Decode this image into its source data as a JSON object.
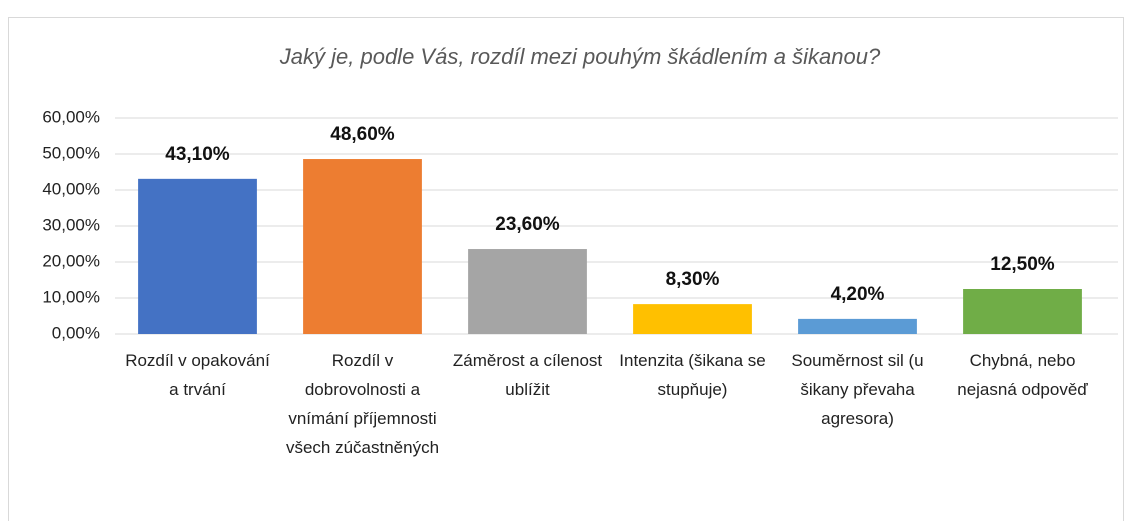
{
  "chart_data": {
    "type": "bar",
    "title": "Jaký je, podle Vás, rozdíl mezi pouhým škádlením a šikanou?",
    "categories": [
      "Rozdíl v opakování a trvání",
      "Rozdíl v dobrovolnosti a vnímání příjemnosti všech zúčastněných",
      "Záměrost a cílenost ublížit",
      "Intenzita (šikana se stupňuje)",
      "Souměrnost sil (u šikany převaha agresora)",
      "Chybná, nebo nejasná odpověď"
    ],
    "values": [
      43.1,
      48.6,
      23.6,
      8.3,
      4.2,
      12.5
    ],
    "value_labels": [
      "43,10%",
      "48,60%",
      "23,60%",
      "8,30%",
      "4,20%",
      "12,50%"
    ],
    "colors": [
      "#4472c4",
      "#ed7d31",
      "#a5a5a5",
      "#ffc000",
      "#5b9bd5",
      "#70ad47"
    ],
    "ylim": [
      0,
      60
    ],
    "yticks": [
      {
        "value": 0,
        "label": "0,00%"
      },
      {
        "value": 10,
        "label": "10,00%"
      },
      {
        "value": 20,
        "label": "20,00%"
      },
      {
        "value": 30,
        "label": "30,00%"
      },
      {
        "value": 40,
        "label": "40,00%"
      },
      {
        "value": 50,
        "label": "50,00%"
      },
      {
        "value": 60,
        "label": "60,00%"
      }
    ],
    "grid": true
  }
}
